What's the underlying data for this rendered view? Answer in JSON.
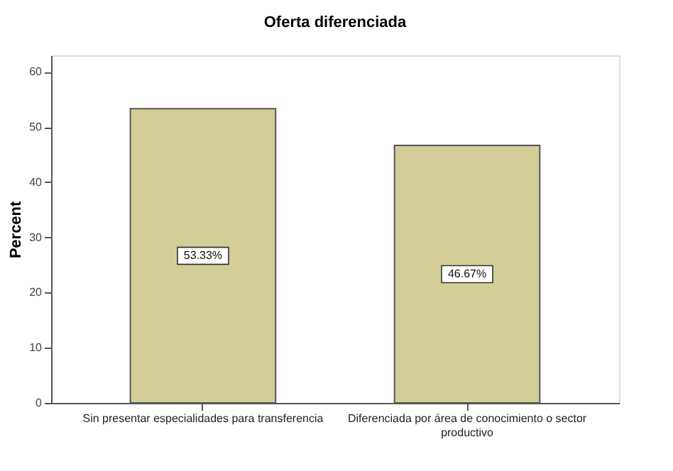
{
  "chart_data": {
    "type": "bar",
    "title": "Oferta diferenciada",
    "ylabel": "Percent",
    "categories": [
      "Sin presentar especialidades para transferencia",
      "Diferenciada por área de conocimiento o sector productivo"
    ],
    "values": [
      53.33,
      46.67
    ],
    "value_labels": [
      "53.33%",
      "46.67%"
    ],
    "color": "#d3ce97",
    "ylim": [
      0,
      63
    ],
    "yticks": [
      0,
      10,
      20,
      30,
      40,
      50,
      60
    ],
    "grid": false
  }
}
